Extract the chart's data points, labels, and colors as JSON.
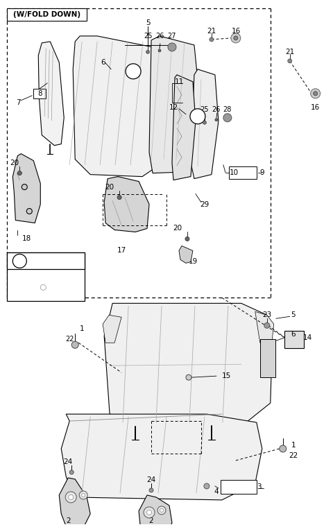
{
  "bg": "#ffffff",
  "lc": "#000000",
  "gray_light": "#e8e8e8",
  "gray_mid": "#d0d0d0",
  "fig_w": 4.8,
  "fig_h": 7.57,
  "dpi": 100,
  "fold_label": "(W/FOLD DOWN)"
}
